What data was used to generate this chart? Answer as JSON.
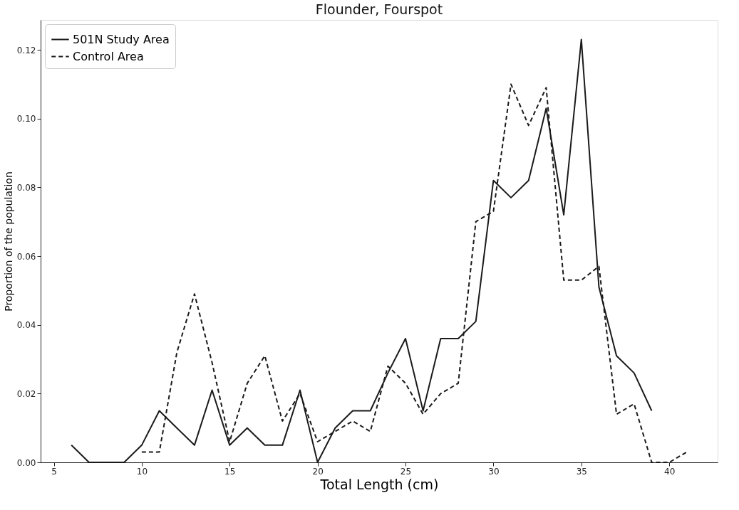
{
  "chart_data": {
    "type": "line",
    "title": "Flounder, Fourspot",
    "xlabel": "Total Length (cm)",
    "ylabel": "Proportion of the population",
    "xlim": [
      4.25,
      42.75
    ],
    "xticks": [
      5,
      10,
      15,
      20,
      25,
      30,
      35,
      40
    ],
    "ylim": [
      0,
      0.1287
    ],
    "yticks": [
      {
        "value": 0,
        "label": "0.00"
      },
      {
        "value": 0.02,
        "label": "0.02"
      },
      {
        "value": 0.04,
        "label": "0.04"
      },
      {
        "value": 0.06,
        "label": "0.06"
      },
      {
        "value": 0.08,
        "label": "0.08"
      },
      {
        "value": 0.1,
        "label": "0.10"
      },
      {
        "value": 0.12,
        "label": "0.12"
      }
    ],
    "grid": false,
    "legend": "top left",
    "marker": "none",
    "series": [
      {
        "name": "501N Study Area",
        "color": "#1a1a1a",
        "line_style": "solid",
        "x": [
          6,
          7,
          8,
          9,
          10,
          11,
          12,
          13,
          14,
          15,
          16,
          17,
          18,
          19,
          20,
          21,
          22,
          23,
          24,
          25,
          26,
          27,
          28,
          29,
          30,
          31,
          32,
          33,
          34,
          35,
          36,
          37,
          38,
          39
        ],
        "values": [
          0.005,
          0,
          0,
          0,
          0.005,
          0.015,
          0.01,
          0.005,
          0.021,
          0.005,
          0.01,
          0.005,
          0.005,
          0.021,
          0,
          0.01,
          0.015,
          0.015,
          0.026,
          0.036,
          0.015,
          0.036,
          0.036,
          0.041,
          0.082,
          0.077,
          0.082,
          0.103,
          0.072,
          0.123,
          0.051,
          0.031,
          0.026,
          0.015
        ]
      },
      {
        "name": "Control Area",
        "color": "#1a1a1a",
        "line_style": "dashed",
        "x": [
          10,
          11,
          12,
          13,
          14,
          15,
          16,
          17,
          18,
          19,
          20,
          21,
          22,
          23,
          24,
          25,
          26,
          27,
          28,
          29,
          30,
          31,
          32,
          33,
          34,
          35,
          36,
          37,
          38,
          39,
          40,
          41
        ],
        "values": [
          0.003,
          0.003,
          0.032,
          0.049,
          0.029,
          0.006,
          0.023,
          0.031,
          0.012,
          0.02,
          0.006,
          0.009,
          0.012,
          0.009,
          0.028,
          0.023,
          0.014,
          0.02,
          0.023,
          0.07,
          0.073,
          0.11,
          0.098,
          0.109,
          0.053,
          0.053,
          0.057,
          0.014,
          0.017,
          0,
          0,
          0.003
        ]
      }
    ]
  }
}
